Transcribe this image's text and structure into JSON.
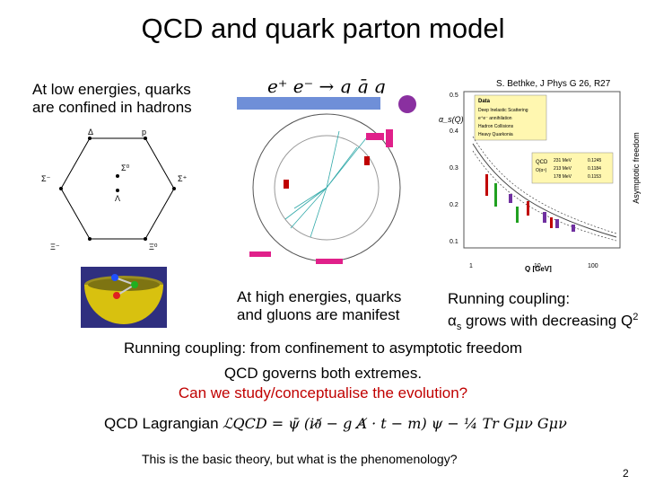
{
  "slide": {
    "title": "QCD and quark parton model",
    "low_energy_text": [
      "At low energies, quarks",
      "are confined in hadrons"
    ],
    "process_formula": "e⁺ e⁻ → q q̄ g",
    "reference": "S. Bethke, J Phys G 26, R27",
    "high_energy_text": [
      "At high energies, quarks",
      "and gluons are manifest"
    ],
    "running_text_1": "Running coupling:",
    "running_alpha": "α",
    "running_alpha_sub": "s",
    "running_text_2": " grows with decreasing Q",
    "running_sup": "2",
    "heading": "Running coupling: from confinement to asymptotic freedom",
    "governs": "QCD governs both extremes.",
    "question": "Can we study/conceptualise the evolution?",
    "lagrangian_label": "QCD Lagrangian",
    "lagrangian_formula": "ℒQCD = ψ̄ (i∂̸ − g A̸ · t − m) ψ − ¼ Tr Gμν Gμν",
    "footer": "This is the basic theory, but what is the phenomenology?",
    "page_number": "2"
  },
  "hexagon": {
    "labels": [
      "Δ",
      "p",
      "Σ⁻",
      "Σ⁰",
      "Λ",
      "Σ⁺",
      "Ξ⁻",
      "Ξ⁰"
    ]
  },
  "coupling_plot": {
    "y_axis_label": "α_s(Q)",
    "y_ticks": [
      "0.5",
      "0.4",
      "0.3",
      "0.2",
      "0.1"
    ],
    "x_ticks": [
      "1",
      "10",
      "100"
    ],
    "x_label": "Q [GeV]",
    "side_label": "Asymptotic freedom",
    "legend_title": "Data",
    "legend_rows": [
      "Deep Inelastic Scattering",
      "e⁺e⁻ annihilation",
      "Hadron Collisions",
      "Heavy Quarkonia"
    ],
    "qcd_label": "QCD",
    "qcd_sub": "O(α⁴)",
    "curves": [
      "231 MeV",
      "213 MeV",
      "178 MeV"
    ],
    "curve_values": [
      "0.1245",
      "0.1184",
      "0.1153"
    ]
  },
  "colors": {
    "red": "#c00000",
    "slate": "#2f2f7f",
    "yellow": "#fff7b0"
  }
}
